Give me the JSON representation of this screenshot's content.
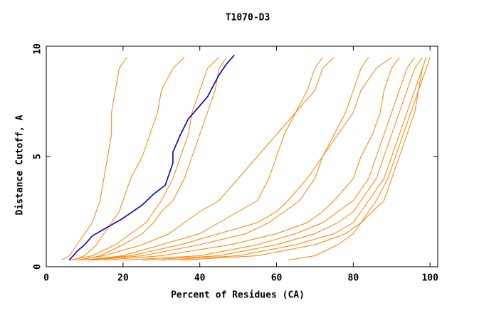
{
  "chart_data": {
    "type": "line",
    "title": "T1070-D3",
    "x_label": "Percent of Residues (CA)",
    "y_label": "Distance Cutoff, A",
    "xlim": [
      0,
      102
    ],
    "ylim": [
      0,
      10
    ],
    "xticks": [
      0,
      20,
      40,
      60,
      80,
      100
    ],
    "yticks": [
      0,
      5,
      10
    ],
    "series": [
      {
        "color": "#ff8000",
        "x": [
          4,
          6,
          8,
          10,
          12,
          13,
          14,
          15,
          16,
          17,
          17,
          18,
          19,
          21
        ],
        "values": [
          0.3,
          0.5,
          1,
          1.5,
          2,
          2.5,
          3,
          4,
          5,
          6,
          7,
          8,
          9,
          9.5
        ]
      },
      {
        "color": "#ff8000",
        "x": [
          7,
          10,
          13,
          15,
          17,
          19,
          20,
          22,
          25,
          27,
          29,
          30,
          33,
          36
        ],
        "values": [
          0.3,
          0.5,
          1,
          1.5,
          2,
          2.5,
          3,
          4,
          5,
          6,
          7,
          8,
          9,
          9.5
        ]
      },
      {
        "color": "#ff8000",
        "x": [
          9,
          14,
          20,
          25,
          28,
          30,
          33,
          36,
          38,
          40,
          42,
          44,
          45,
          47
        ],
        "values": [
          0.3,
          0.5,
          1,
          1.5,
          2,
          2.5,
          3,
          4,
          5,
          6,
          7,
          8,
          9,
          9.5
        ]
      },
      {
        "color": "#ff8000",
        "x": [
          10,
          20,
          30,
          40,
          45,
          50,
          55,
          58,
          60,
          62,
          65,
          68,
          70,
          72
        ],
        "values": [
          0.3,
          0.5,
          1,
          1.5,
          2,
          2.5,
          3,
          4,
          5,
          6,
          7,
          8,
          9,
          9.5
        ]
      },
      {
        "color": "#ff8000",
        "x": [
          12,
          25,
          40,
          52,
          58,
          62,
          66,
          70,
          72,
          75,
          78,
          80,
          82,
          84
        ],
        "values": [
          0.3,
          0.5,
          1,
          1.5,
          2,
          2.5,
          3,
          4,
          5,
          6,
          7,
          8,
          9,
          9.5
        ]
      },
      {
        "color": "#ff8000",
        "x": [
          15,
          30,
          48,
          60,
          68,
          72,
          75,
          80,
          82,
          85,
          87,
          88,
          90,
          92
        ],
        "values": [
          0.3,
          0.5,
          1,
          1.5,
          2,
          2.5,
          3,
          4,
          5,
          6,
          7,
          8,
          9,
          9.5
        ]
      },
      {
        "color": "#ff8000",
        "x": [
          20,
          40,
          55,
          65,
          72,
          76,
          80,
          84,
          86,
          88,
          90,
          92,
          94,
          96
        ],
        "values": [
          0.3,
          0.5,
          1,
          1.5,
          2,
          2.5,
          3,
          4,
          5,
          6,
          7,
          8,
          9,
          9.5
        ]
      },
      {
        "color": "#ff8000",
        "x": [
          25,
          45,
          60,
          70,
          76,
          80,
          82,
          86,
          88,
          90,
          92,
          94,
          96,
          98
        ],
        "values": [
          0.3,
          0.5,
          1,
          1.5,
          2,
          2.5,
          3,
          4,
          5,
          6,
          7,
          8,
          9,
          9.5
        ]
      },
      {
        "color": "#ff8000",
        "x": [
          30,
          50,
          65,
          75,
          80,
          82,
          84,
          88,
          90,
          92,
          94,
          96,
          98,
          99
        ],
        "values": [
          0.3,
          0.5,
          1,
          1.5,
          2,
          2.5,
          3,
          4,
          5,
          6,
          7,
          8,
          9,
          9.5
        ]
      },
      {
        "color": "#ff8000",
        "x": [
          63,
          70,
          76,
          80,
          82,
          84,
          86,
          89,
          91,
          93,
          95,
          97,
          99,
          100
        ],
        "values": [
          0.3,
          0.5,
          1,
          1.5,
          2,
          2.5,
          3,
          4,
          5,
          6,
          7,
          8,
          9,
          9.5
        ]
      },
      {
        "color": "#ff8000",
        "x": [
          8,
          15,
          25,
          32,
          36,
          40,
          45,
          50,
          55,
          60,
          65,
          70,
          72,
          75
        ],
        "values": [
          0.3,
          0.5,
          1,
          1.5,
          2,
          2.5,
          3,
          4,
          5,
          6,
          7,
          8,
          9,
          9.5
        ]
      },
      {
        "color": "#ff8000",
        "x": [
          11,
          22,
          35,
          45,
          55,
          60,
          63,
          68,
          72,
          76,
          80,
          82,
          86,
          90
        ],
        "values": [
          0.3,
          0.5,
          1,
          1.5,
          2,
          2.5,
          3,
          4,
          5,
          6,
          7,
          8,
          9,
          9.5
        ]
      },
      {
        "color": "#ff8000",
        "x": [
          35,
          55,
          70,
          78,
          82,
          85,
          88,
          90,
          92,
          94,
          96,
          97,
          98,
          99
        ],
        "values": [
          0.3,
          0.5,
          1,
          1.5,
          2,
          2.5,
          3,
          4,
          5,
          6,
          7,
          8,
          9,
          9.5
        ]
      },
      {
        "color": "#ff8000",
        "x": [
          6,
          12,
          18,
          22,
          26,
          28,
          30,
          33,
          35,
          37,
          38,
          40,
          42,
          45
        ],
        "values": [
          0.3,
          0.5,
          1,
          1.5,
          2,
          2.5,
          3,
          4,
          5,
          6,
          7,
          8,
          9,
          9.5
        ]
      },
      {
        "color": "#0000c0",
        "x": [
          6,
          8,
          10,
          12,
          16,
          20,
          25,
          28,
          31,
          33,
          33,
          35,
          37,
          40,
          42,
          45,
          47,
          49
        ],
        "values": [
          0.3,
          0.7,
          1,
          1.4,
          1.8,
          2.2,
          2.8,
          3.3,
          3.7,
          4.7,
          5.2,
          6,
          6.7,
          7.3,
          7.7,
          8.7,
          9.2,
          9.6
        ]
      }
    ]
  }
}
